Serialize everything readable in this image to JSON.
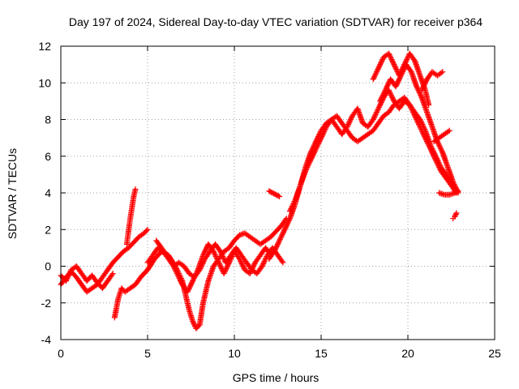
{
  "chart_data": {
    "type": "scatter",
    "title": "Day 197 of 2024, Sidereal Day-to-day VTEC variation (SDTVAR) for receiver p364",
    "xlabel": "GPS time / hours",
    "ylabel": "SDTVAR / TECUs",
    "xlim": [
      0,
      25
    ],
    "ylim": [
      -4,
      12
    ],
    "xticks": [
      "0",
      "5",
      "10",
      "15",
      "20",
      "25"
    ],
    "yticks": [
      "-4",
      "-2",
      "0",
      "2",
      "4",
      "6",
      "8",
      "10",
      "12"
    ],
    "grid": true,
    "legend": "none",
    "marker": "plus",
    "color": "#ff0000",
    "series": [
      {
        "x": [
          0.0,
          0.3,
          0.6,
          0.9,
          1.2,
          1.5,
          1.8,
          2.1,
          2.4,
          2.7,
          3.0,
          3.3,
          3.6,
          3.9,
          4.2,
          4.5,
          4.8,
          5.0
        ],
        "y": [
          -1.0,
          -0.6,
          -0.3,
          -0.6,
          -1.0,
          -1.4,
          -1.2,
          -1.0,
          -0.6,
          -0.2,
          0.2,
          0.5,
          0.8,
          1.0,
          1.3,
          1.6,
          1.8,
          2.0
        ]
      },
      {
        "x": [
          3.8,
          3.9,
          4.0,
          4.1,
          4.2,
          4.3
        ],
        "y": [
          1.2,
          1.9,
          2.6,
          3.2,
          3.8,
          4.2
        ]
      },
      {
        "x": [
          0.0,
          0.3,
          0.6,
          0.9,
          1.2,
          1.5,
          1.8,
          2.1,
          2.4,
          2.7,
          3.0
        ],
        "y": [
          -0.5,
          -0.8,
          -0.2,
          0.0,
          -0.4,
          -0.8,
          -0.5,
          -0.9,
          -1.2,
          -0.8,
          -0.4
        ]
      },
      {
        "x": [
          3.1,
          3.3,
          3.5,
          3.7,
          4.0,
          4.3,
          4.6,
          5.0,
          5.4,
          5.8,
          6.2,
          6.6,
          7.0,
          7.2,
          7.4,
          7.6,
          7.8,
          8.0,
          8.2,
          8.5,
          8.8,
          9.1,
          9.4,
          9.7,
          10.0,
          10.3,
          10.6,
          10.9,
          11.2,
          11.5,
          11.8,
          12.1,
          12.4,
          12.7,
          13.0
        ],
        "y": [
          -2.8,
          -1.8,
          -1.2,
          -1.4,
          -1.2,
          -1.0,
          -0.6,
          -0.2,
          0.4,
          0.8,
          0.6,
          0.0,
          -0.8,
          -1.6,
          -2.4,
          -3.0,
          -3.4,
          -3.2,
          -2.0,
          -0.8,
          0.0,
          0.4,
          0.8,
          1.0,
          1.4,
          1.7,
          1.8,
          1.6,
          1.4,
          1.2,
          1.4,
          1.6,
          1.9,
          2.2,
          2.6
        ]
      },
      {
        "x": [
          5.0,
          5.3,
          5.6,
          5.9,
          6.2,
          6.5,
          6.8,
          7.1,
          7.4,
          7.7,
          8.0,
          8.3,
          8.6,
          8.9,
          9.2,
          9.5,
          9.8,
          10.1,
          10.4,
          10.7,
          11.0,
          11.3,
          11.6,
          11.9,
          12.2,
          12.5,
          12.8
        ],
        "y": [
          0.2,
          0.6,
          1.0,
          0.8,
          0.4,
          0.0,
          0.2,
          0.0,
          -0.4,
          -0.6,
          -0.2,
          0.4,
          0.8,
          1.2,
          0.8,
          0.2,
          0.6,
          1.0,
          0.6,
          0.2,
          -0.2,
          -0.4,
          0.0,
          0.6,
          1.0,
          0.6,
          0.2
        ]
      },
      {
        "x": [
          5.5,
          5.8,
          6.1,
          6.4,
          6.7,
          7.0,
          7.3,
          7.6,
          7.9,
          8.2,
          8.5,
          8.8,
          9.1,
          9.4,
          9.7,
          10.0,
          10.3,
          10.6,
          10.9,
          11.2,
          11.5,
          11.8,
          12.1
        ],
        "y": [
          1.4,
          1.0,
          0.6,
          0.2,
          -0.4,
          -1.0,
          -1.4,
          -0.8,
          -0.2,
          0.6,
          1.2,
          0.8,
          0.2,
          -0.4,
          0.2,
          0.8,
          0.4,
          -0.2,
          -0.4,
          0.2,
          0.6,
          1.0,
          0.6
        ]
      },
      {
        "x": [
          12.0,
          12.3,
          12.6,
          12.9,
          13.2,
          13.5,
          13.8,
          14.1,
          14.4,
          14.7,
          15.0,
          15.3,
          15.6,
          15.9,
          16.2,
          16.5,
          16.8,
          17.1,
          17.4,
          17.7,
          18.0,
          18.3,
          18.6,
          18.9,
          19.2,
          19.5,
          19.8,
          20.1,
          20.4,
          20.7,
          21.0,
          21.3,
          21.6,
          21.9,
          22.2,
          22.5,
          22.8
        ],
        "y": [
          0.4,
          0.8,
          1.4,
          2.0,
          2.6,
          3.4,
          4.4,
          5.4,
          6.2,
          6.8,
          7.4,
          7.8,
          8.0,
          8.2,
          7.8,
          7.4,
          7.0,
          6.8,
          7.0,
          7.2,
          7.4,
          7.8,
          8.2,
          8.4,
          8.8,
          9.0,
          9.2,
          8.8,
          8.2,
          7.6,
          7.0,
          6.4,
          5.8,
          5.2,
          4.8,
          4.4,
          4.0
        ]
      },
      {
        "x": [
          13.2,
          13.5,
          13.8,
          14.1,
          14.4,
          14.7,
          15.0,
          15.3,
          15.6,
          15.9,
          16.2,
          16.5,
          16.8,
          17.1,
          17.4,
          17.7,
          18.0,
          18.3,
          18.6,
          18.9,
          19.2,
          19.5,
          19.8,
          20.1,
          20.4,
          20.7,
          21.0,
          21.3,
          21.6,
          21.9,
          22.2,
          22.5,
          22.8
        ],
        "y": [
          3.0,
          3.6,
          4.4,
          5.2,
          5.8,
          6.4,
          7.0,
          7.6,
          8.0,
          7.6,
          7.2,
          7.6,
          8.2,
          8.6,
          7.8,
          7.6,
          8.0,
          8.6,
          9.2,
          9.6,
          9.0,
          8.6,
          9.0,
          8.8,
          8.4,
          8.0,
          7.4,
          6.6,
          6.0,
          5.4,
          5.0,
          4.6,
          4.2
        ]
      },
      {
        "x": [
          18.0,
          18.3,
          18.6,
          18.9,
          19.2,
          19.5,
          19.8,
          20.1,
          20.4,
          20.7,
          21.0,
          21.2
        ],
        "y": [
          10.2,
          10.8,
          11.4,
          11.6,
          11.0,
          10.4,
          11.0,
          11.6,
          11.2,
          10.4,
          9.6,
          8.8
        ]
      },
      {
        "x": [
          18.4,
          18.7,
          19.0,
          19.3,
          19.6,
          19.9,
          20.2,
          20.5,
          20.8,
          21.1,
          21.4,
          21.7,
          22.0,
          22.3,
          22.6,
          22.9
        ],
        "y": [
          9.0,
          9.6,
          10.2,
          9.8,
          10.4,
          11.0,
          10.6,
          9.8,
          9.2,
          8.4,
          7.6,
          6.8,
          6.2,
          5.4,
          4.6,
          4.0
        ]
      },
      {
        "x": [
          20.8,
          21.1,
          21.4,
          21.7,
          22.0
        ],
        "y": [
          9.6,
          10.2,
          10.6,
          10.4,
          10.6
        ]
      },
      {
        "x": [
          21.5,
          21.8,
          22.1,
          22.4
        ],
        "y": [
          6.8,
          7.0,
          7.2,
          7.4
        ]
      },
      {
        "x": [
          21.8,
          22.1,
          22.4,
          22.7,
          22.9
        ],
        "y": [
          4.0,
          3.9,
          3.9,
          4.0,
          4.1
        ]
      },
      {
        "x": [
          22.6,
          22.7,
          22.8
        ],
        "y": [
          2.6,
          2.7,
          2.9
        ]
      },
      {
        "x": [
          12.0,
          12.2,
          12.4,
          12.6
        ],
        "y": [
          4.1,
          4.0,
          3.9,
          3.8
        ]
      }
    ]
  }
}
